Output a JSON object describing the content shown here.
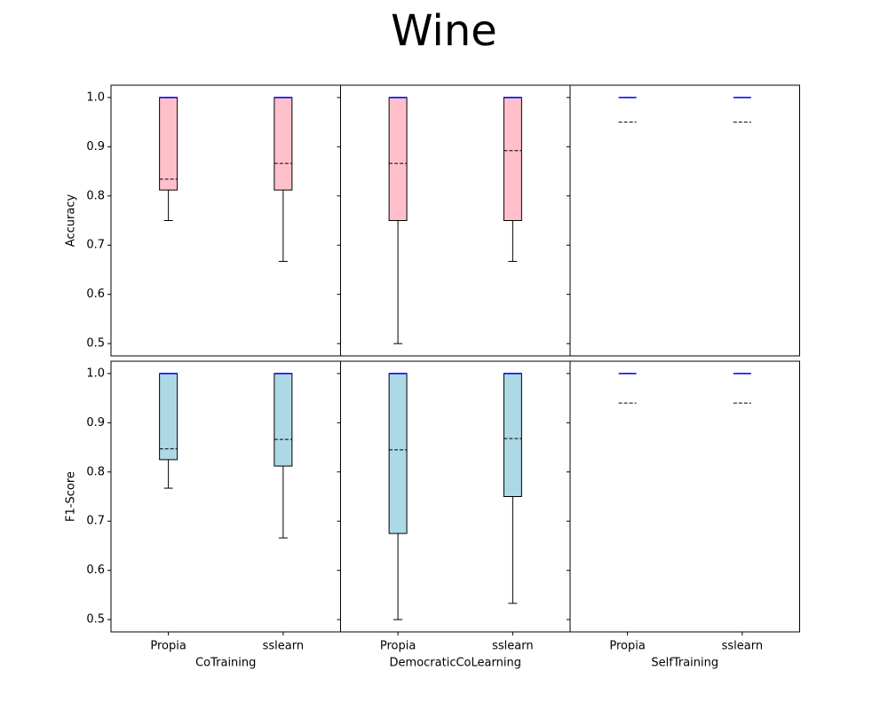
{
  "title": "Wine",
  "chart_data": [
    {
      "type": "box",
      "ylabel": "Accuracy",
      "color": "pink",
      "median_color": "blue",
      "ylim": [
        0.475,
        1.025
      ],
      "yticks": [
        0.5,
        0.6,
        0.7,
        0.8,
        0.9,
        {
          "value": 1,
          "label": "1.0"
        }
      ],
      "boxes": [
        {
          "whislo": 0.75,
          "q1": 0.812,
          "med": 1,
          "q3": 1,
          "whishi": 1,
          "mean": 0.834
        },
        {
          "whislo": 0.667,
          "q1": 0.812,
          "med": 1,
          "q3": 1,
          "whishi": 1,
          "mean": 0.866
        }
      ]
    },
    {
      "type": "box",
      "color": "pink",
      "median_color": "blue",
      "ylim": [
        0.475,
        1.025
      ],
      "yticks": [
        0.5,
        0.6,
        0.7,
        0.8,
        0.9,
        1
      ],
      "boxes": [
        {
          "whislo": 0.5,
          "q1": 0.75,
          "med": 1,
          "q3": 1,
          "whishi": 1,
          "mean": 0.866
        },
        {
          "whislo": 0.667,
          "q1": 0.75,
          "med": 1,
          "q3": 1,
          "whishi": 1,
          "mean": 0.892
        }
      ]
    },
    {
      "type": "box",
      "color": "pink",
      "median_color": "blue",
      "ylim": [
        0.475,
        1.025
      ],
      "yticks": [
        0.5,
        0.6,
        0.7,
        0.8,
        0.9,
        1
      ],
      "boxes": [
        {
          "whislo": 1,
          "q1": 1,
          "med": 1,
          "q3": 1,
          "whishi": 1,
          "mean": 0.95
        },
        {
          "whislo": 1,
          "q1": 1,
          "med": 1,
          "q3": 1,
          "whishi": 1,
          "mean": 0.95
        }
      ]
    },
    {
      "type": "box",
      "ylabel": "F1-Score",
      "xlabel": "CoTraining",
      "categories": [
        "Propia",
        "sslearn"
      ],
      "color": "lightblue",
      "median_color": "blue",
      "ylim": [
        0.475,
        1.025
      ],
      "yticks": [
        0.5,
        0.6,
        0.7,
        0.8,
        0.9,
        {
          "value": 1,
          "label": "1.0"
        }
      ],
      "boxes": [
        {
          "whislo": 0.767,
          "q1": 0.825,
          "med": 1,
          "q3": 1,
          "whishi": 1,
          "mean": 0.847
        },
        {
          "whislo": 0.666,
          "q1": 0.812,
          "med": 1,
          "q3": 1,
          "whishi": 1,
          "mean": 0.866
        }
      ]
    },
    {
      "type": "box",
      "xlabel": "DemocraticCoLearning",
      "categories": [
        "Propia",
        "sslearn"
      ],
      "color": "lightblue",
      "median_color": "blue",
      "ylim": [
        0.475,
        1.025
      ],
      "yticks": [
        0.5,
        0.6,
        0.7,
        0.8,
        0.9,
        1
      ],
      "boxes": [
        {
          "whislo": 0.5,
          "q1": 0.675,
          "med": 1,
          "q3": 1,
          "whishi": 1,
          "mean": 0.845
        },
        {
          "whislo": 0.533,
          "q1": 0.75,
          "med": 1,
          "q3": 1,
          "whishi": 1,
          "mean": 0.868
        }
      ]
    },
    {
      "type": "box",
      "xlabel": "SelfTraining",
      "categories": [
        "Propia",
        "sslearn"
      ],
      "color": "lightblue",
      "median_color": "blue",
      "ylim": [
        0.475,
        1.025
      ],
      "yticks": [
        0.5,
        0.6,
        0.7,
        0.8,
        0.9,
        1
      ],
      "boxes": [
        {
          "whislo": 1,
          "q1": 1,
          "med": 1,
          "q3": 1,
          "whishi": 1,
          "mean": 0.94
        },
        {
          "whislo": 1,
          "q1": 1,
          "med": 1,
          "q3": 1,
          "whishi": 1,
          "mean": 0.94
        }
      ]
    }
  ]
}
